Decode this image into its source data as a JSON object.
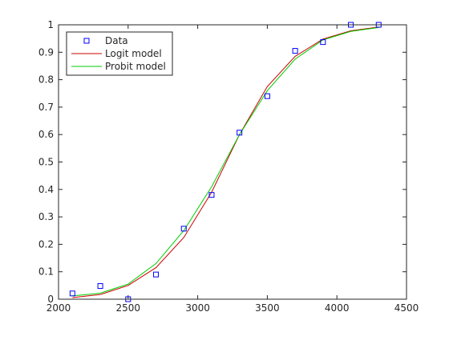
{
  "chart_data": {
    "type": "scatter",
    "x_ticks": [
      2000,
      2500,
      3000,
      3500,
      4000,
      4500
    ],
    "y_ticks": [
      0,
      0.1,
      0.2,
      0.3,
      0.4,
      0.5,
      0.6,
      0.7,
      0.8,
      0.9,
      1
    ],
    "xlim": [
      2000,
      4500
    ],
    "ylim": [
      0,
      1
    ],
    "grid": false,
    "legend_position": "top-left",
    "series": [
      {
        "name": "Data",
        "kind": "markers",
        "marker": "square",
        "color": "#0000ff",
        "x": [
          2100,
          2300,
          2500,
          2700,
          2900,
          3100,
          3300,
          3500,
          3700,
          3900,
          4100,
          4300
        ],
        "y": [
          0.021,
          0.048,
          0.0,
          0.09,
          0.257,
          0.38,
          0.607,
          0.74,
          0.905,
          0.937,
          1.0,
          1.0
        ]
      },
      {
        "name": "Logit model",
        "kind": "line",
        "color": "#cc0000",
        "x": [
          2100,
          2300,
          2500,
          2700,
          2900,
          3100,
          3300,
          3500,
          3700,
          3900,
          4100,
          4300
        ],
        "y": [
          0.006,
          0.017,
          0.05,
          0.115,
          0.225,
          0.39,
          0.6,
          0.775,
          0.885,
          0.948,
          0.978,
          0.992
        ]
      },
      {
        "name": "Probit model",
        "kind": "line",
        "color": "#00cc00",
        "x": [
          2100,
          2300,
          2500,
          2700,
          2900,
          3100,
          3300,
          3500,
          3700,
          3900,
          4100,
          4300
        ],
        "y": [
          0.012,
          0.022,
          0.055,
          0.13,
          0.25,
          0.41,
          0.6,
          0.76,
          0.875,
          0.945,
          0.976,
          0.99
        ]
      }
    ]
  }
}
